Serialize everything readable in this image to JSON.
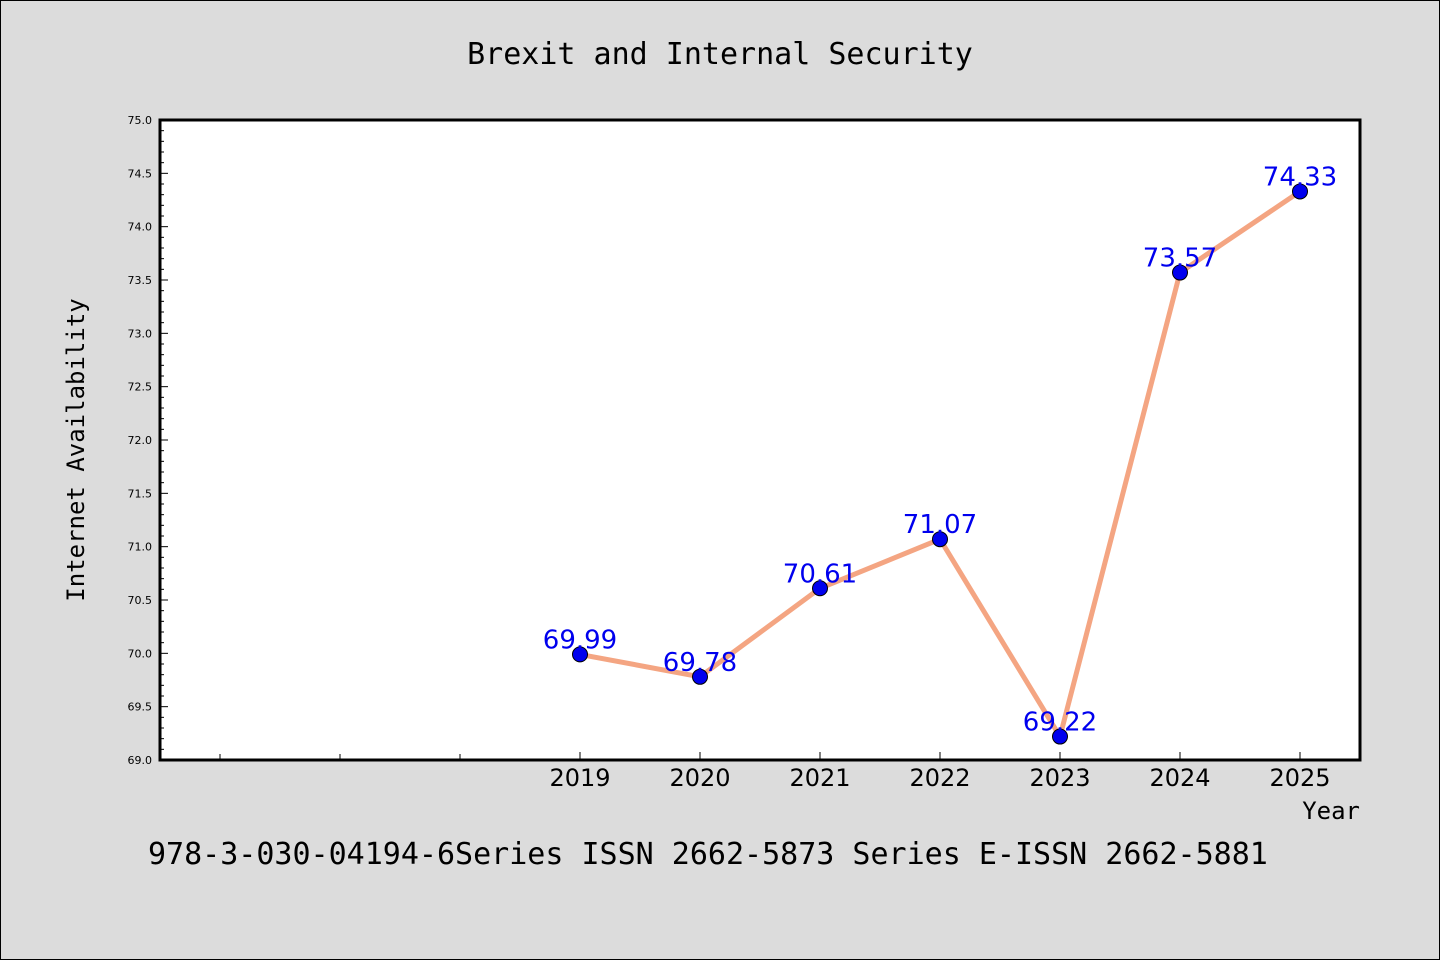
{
  "chart_data": {
    "type": "line",
    "title": "Brexit and Internal Security",
    "xlabel": "Year",
    "ylabel": "Internet Availability",
    "categories": [
      "2019",
      "2020",
      "2021",
      "2022",
      "2023",
      "2024",
      "2025"
    ],
    "series": [
      {
        "values": [
          69.99,
          69.78,
          70.61,
          71.07,
          69.22,
          73.57,
          74.33
        ],
        "data_labels": [
          "69.99",
          "69.78",
          "70.61",
          "71.07",
          "69.22",
          "73.57",
          "74.33"
        ]
      }
    ],
    "ylim": [
      69.0,
      75.0
    ],
    "yticks": [
      69.0,
      69.5,
      70.0,
      70.5,
      71.0,
      71.5,
      72.0,
      72.5,
      73.0,
      73.5,
      74.0,
      74.5,
      75.0
    ],
    "ytick_labels": [
      "69.0",
      "69.5",
      "70.0",
      "70.5",
      "71.0",
      "71.5",
      "72.0",
      "72.5",
      "73.0",
      "73.5",
      "74.0",
      "74.5",
      "75.0"
    ],
    "grid": false,
    "legend": "none",
    "colors": {
      "line": "#f4a582",
      "marker": "#0000ee",
      "data_label": "#0000ee",
      "background": "#dcdcdc",
      "plot_background": "#ffffff"
    },
    "footer": "978-3-030-04194-6Series ISSN 2662-5873 Series E-ISSN 2662-5881"
  }
}
